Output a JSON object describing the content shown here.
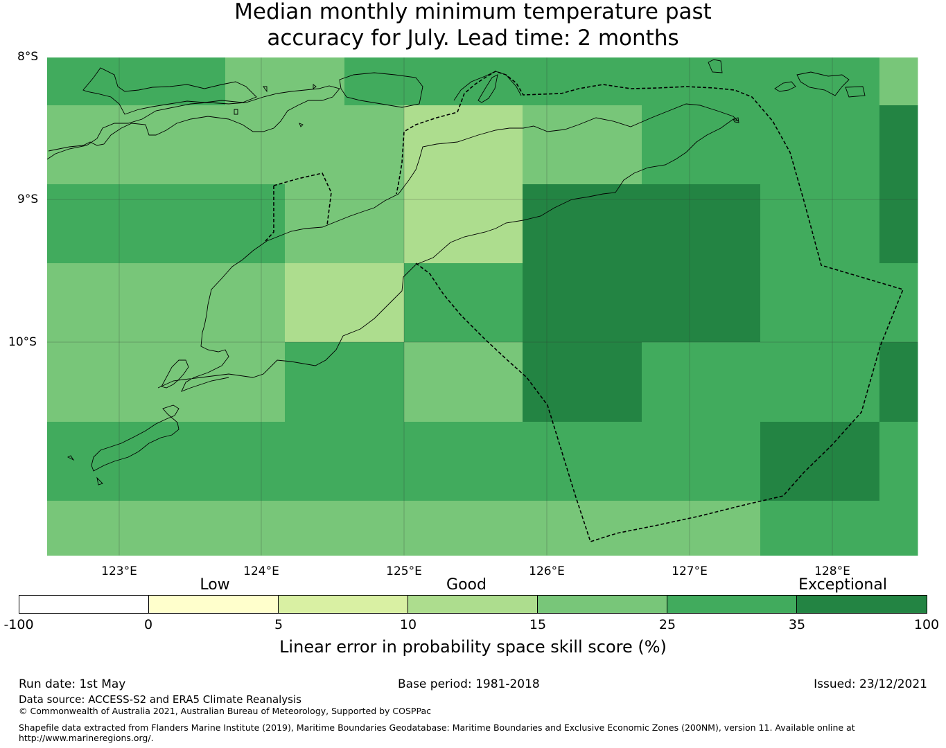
{
  "title": {
    "line1": "Median monthly minimum temperature past",
    "line2": "accuracy for July. Lead time: 2 months"
  },
  "map": {
    "lat_labels": [
      "8°S",
      "9°S",
      "10°S"
    ],
    "lon_labels": [
      "123°E",
      "124°E",
      "125°E",
      "126°E",
      "127°E",
      "128°E"
    ],
    "skill_grid_category_index_rows_north_to_south": [
      [
        5,
        5,
        5,
        4,
        4,
        5,
        5,
        5,
        5,
        5,
        5,
        5,
        5,
        5,
        4
      ],
      [
        4,
        4,
        4,
        4,
        4,
        4,
        3,
        3,
        4,
        4,
        5,
        5,
        5,
        5,
        6
      ],
      [
        5,
        5,
        5,
        5,
        4,
        4,
        3,
        3,
        6,
        6,
        6,
        6,
        5,
        5,
        6
      ],
      [
        4,
        4,
        4,
        4,
        3,
        3,
        5,
        5,
        6,
        6,
        6,
        6,
        5,
        5,
        5
      ],
      [
        4,
        4,
        4,
        4,
        5,
        5,
        4,
        4,
        6,
        6,
        5,
        5,
        5,
        5,
        6
      ],
      [
        5,
        5,
        5,
        5,
        5,
        5,
        5,
        5,
        5,
        5,
        5,
        5,
        6,
        6,
        5
      ],
      [
        4,
        4,
        4,
        4,
        4,
        4,
        4,
        4,
        4,
        4,
        4,
        4,
        5,
        5,
        5
      ]
    ]
  },
  "colorbar": {
    "categories": [
      "Low",
      "Good",
      "Exceptional"
    ],
    "ticks": [
      "-100",
      "0",
      "5",
      "10",
      "15",
      "25",
      "35",
      "100"
    ],
    "colors": [
      "#ffffff",
      "#ffffcc",
      "#d9f0a3",
      "#addd8e",
      "#78c679",
      "#41ab5d",
      "#238443"
    ],
    "label": "Linear error in probability space skill score (%)"
  },
  "footer": {
    "run_date": "Run date: 1st May",
    "base_period": "Base period: 1981-2018",
    "issued": "Issued: 23/12/2021",
    "data_source": "Data source: ACCESS-S2 and ERA5 Climate Reanalysis",
    "copyright": "© Commonwealth of Australia 2021, Australian Bureau of Meteorology, Supported by COSPPac",
    "shapefile_line1": "Shapefile data extracted from Flanders Marine Institute (2019), Maritime Boundaries Geodatabase: Maritime Boundaries and Exclusive Economic Zones (200NM), version 11. Available online at",
    "shapefile_line2": "http://www.marineregions.org/."
  }
}
